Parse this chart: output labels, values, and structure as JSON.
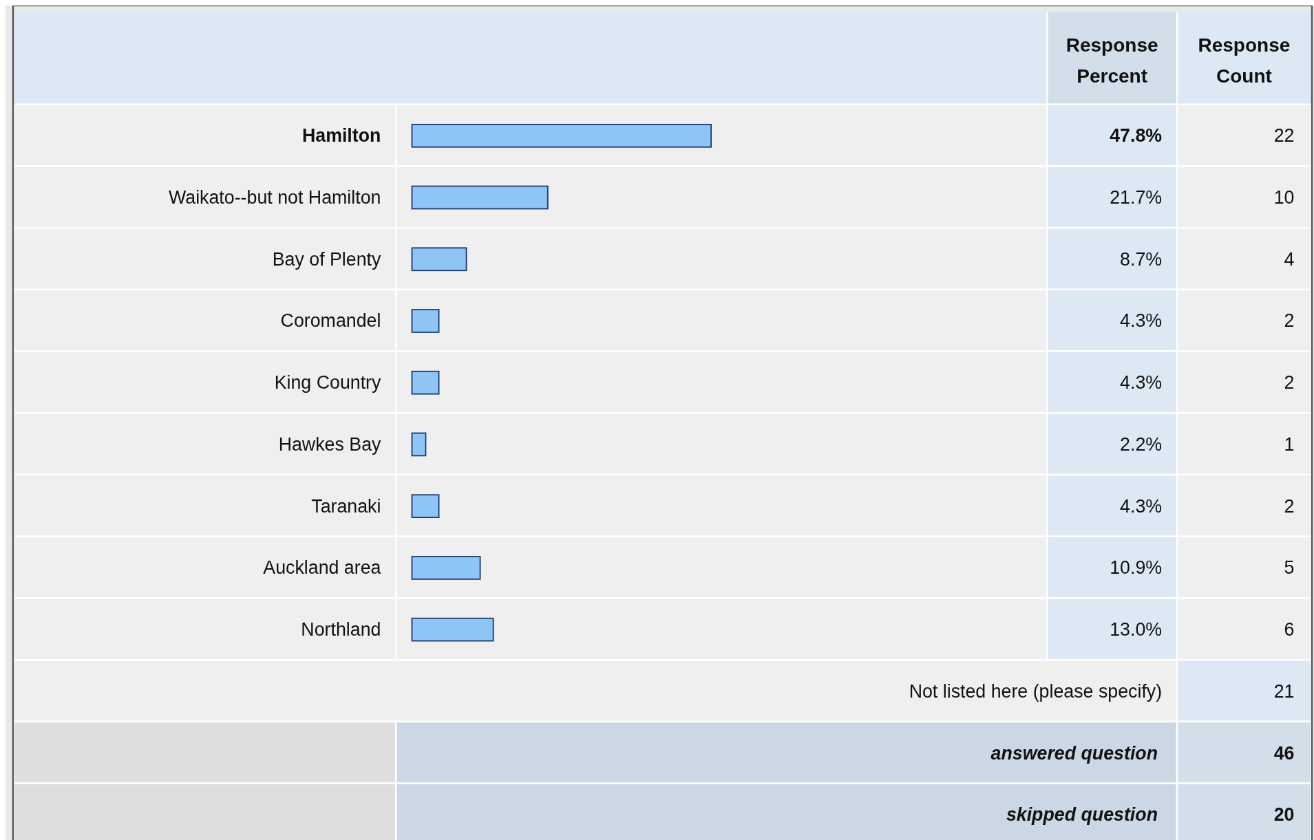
{
  "chart_data": {
    "type": "bar",
    "orientation": "horizontal",
    "categories": [
      "Hamilton",
      "Waikato--but not Hamilton",
      "Bay of Plenty",
      "Coromandel",
      "King Country",
      "Hawkes Bay",
      "Taranaki",
      "Auckland area",
      "Northland"
    ],
    "values": [
      47.8,
      21.7,
      8.7,
      4.3,
      4.3,
      2.2,
      4.3,
      10.9,
      13.0
    ],
    "value_labels": [
      "47.8%",
      "21.7%",
      "8.7%",
      "4.3%",
      "4.3%",
      "2.2%",
      "4.3%",
      "10.9%",
      "13.0%"
    ],
    "color": "#8ec5f5",
    "annotations": [
      "Response Percent",
      "Response Count",
      "22",
      "10",
      "4",
      "2",
      "2",
      "1",
      "2",
      "5",
      "6",
      "Not listed here (please specify)",
      "21",
      "answered question",
      "46",
      "skipped question",
      "20"
    ]
  }
}
